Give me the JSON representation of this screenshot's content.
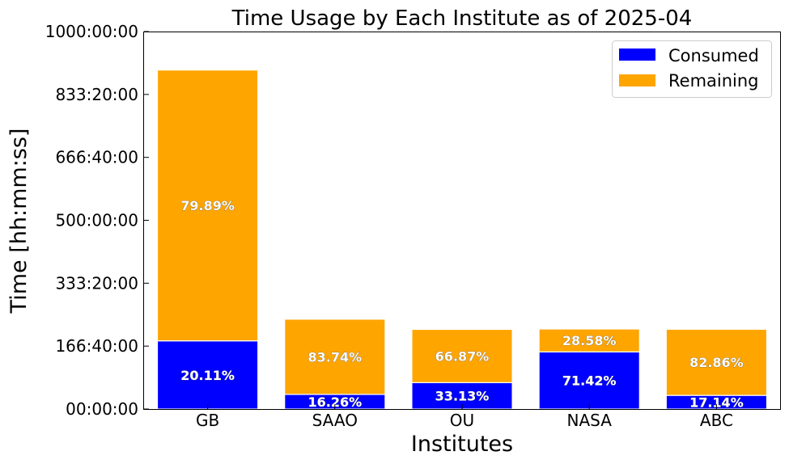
{
  "chart_data": {
    "type": "bar",
    "stacked": true,
    "title": "Time Usage by Each Institute as of 2025-04",
    "xlabel": "Institutes",
    "ylabel": "Time [hh:mm:ss]",
    "categories": [
      "GB",
      "SAAO",
      "OU",
      "NASA",
      "ABC"
    ],
    "ylim_hours": [
      0,
      1000
    ],
    "y_tick_labels": [
      "00:00:00",
      "166:40:00",
      "333:20:00",
      "500:00:00",
      "666:40:00",
      "833:20:00",
      "1000:00:00"
    ],
    "series": [
      {
        "name": "Consumed",
        "color": "#0000ff",
        "values_hours": [
          180.6,
          38.7,
          69.9,
          151.4,
          36.2
        ],
        "percent_labels": [
          "20.11%",
          "16.26%",
          "33.13%",
          "71.42%",
          "17.14%"
        ]
      },
      {
        "name": "Remaining",
        "color": "#ffa500",
        "values_hours": [
          717.4,
          199.3,
          141.1,
          60.6,
          175.1
        ],
        "percent_labels": [
          "79.89%",
          "83.74%",
          "66.87%",
          "28.58%",
          "82.86%"
        ]
      }
    ],
    "legend_position": "top-right",
    "grid": false
  }
}
